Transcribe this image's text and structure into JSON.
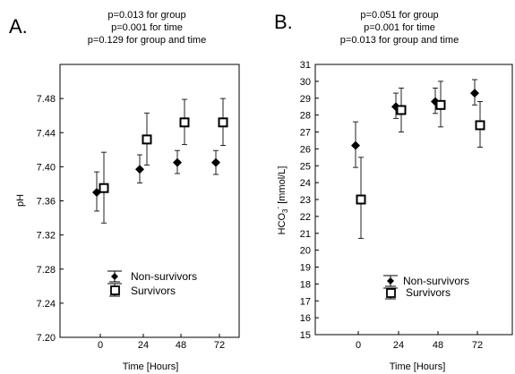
{
  "chart_data": [
    {
      "panel": "A.",
      "type": "scatter",
      "annotations": [
        "p=0.013 for group",
        "p=0.001 for time",
        "p=0.129 for group and time"
      ],
      "xlabel": "Time [Hours]",
      "ylabel": "pH",
      "categories": [
        "0",
        "24",
        "48",
        "72"
      ],
      "ylim": [
        7.2,
        7.52
      ],
      "yticks": [
        7.2,
        7.24,
        7.28,
        7.32,
        7.36,
        7.4,
        7.44,
        7.48
      ],
      "ytick_labels": [
        "7.20",
        "7.24",
        "7.28",
        "7.32",
        "7.36",
        "7.40",
        "7.44",
        "7.48"
      ],
      "grid": false,
      "legend": "bottom",
      "series": [
        {
          "name": "Non-survivors",
          "marker": "diamond",
          "values": [
            7.37,
            7.397,
            7.405,
            7.405
          ],
          "lower": [
            7.348,
            7.381,
            7.392,
            7.391
          ],
          "upper": [
            7.394,
            7.414,
            7.419,
            7.419
          ]
        },
        {
          "name": "Survivors",
          "marker": "square",
          "values": [
            7.375,
            7.432,
            7.452,
            7.452
          ],
          "lower": [
            7.334,
            7.402,
            7.426,
            7.425
          ],
          "upper": [
            7.417,
            7.463,
            7.479,
            7.48
          ]
        }
      ]
    },
    {
      "panel": "B.",
      "type": "scatter",
      "annotations": [
        "p=0.051 for group",
        "p=0.001 for time",
        "p=0.013 for group and time"
      ],
      "xlabel": "Time [Hours]",
      "ylabel": "HCO",
      "ylabel_sub": "3",
      "ylabel_sup": "-",
      "ylabel_unit": " [mmol/L]",
      "categories": [
        "0",
        "24",
        "48",
        "72"
      ],
      "ylim": [
        15,
        31
      ],
      "yticks": [
        15,
        16,
        17,
        18,
        19,
        20,
        21,
        22,
        23,
        24,
        25,
        26,
        27,
        28,
        29,
        30,
        31
      ],
      "ytick_labels": [
        "15",
        "16",
        "17",
        "18",
        "19",
        "20",
        "21",
        "22",
        "23",
        "24",
        "25",
        "26",
        "27",
        "28",
        "29",
        "30",
        "31"
      ],
      "grid": false,
      "legend": "bottom",
      "series": [
        {
          "name": "Non-survivors",
          "marker": "diamond",
          "values": [
            26.2,
            28.5,
            28.8,
            29.3
          ],
          "lower": [
            24.9,
            27.8,
            28.1,
            28.6
          ],
          "upper": [
            27.6,
            29.3,
            29.6,
            30.1
          ]
        },
        {
          "name": "Survivors",
          "marker": "square",
          "values": [
            23.0,
            28.3,
            28.6,
            27.4
          ],
          "lower": [
            20.7,
            27.0,
            27.3,
            26.1
          ],
          "upper": [
            25.5,
            29.6,
            30.0,
            28.8
          ]
        }
      ]
    }
  ]
}
